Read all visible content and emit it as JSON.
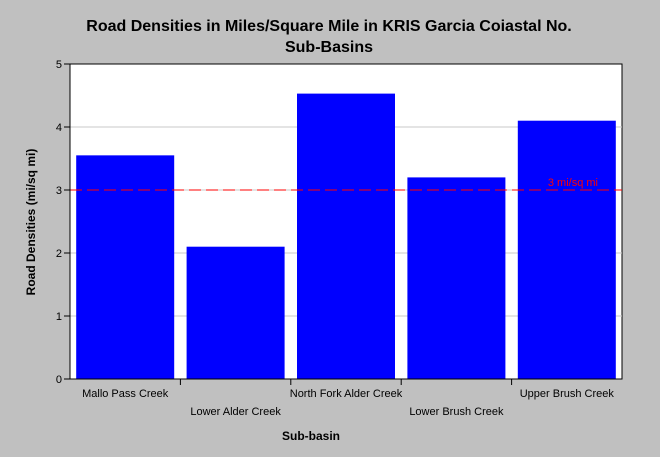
{
  "chart_data": {
    "type": "bar",
    "title_line1": "Road Densities in Miles/Square Mile in KRIS Garcia Coiastal No.",
    "title_line2": "Sub-Basins",
    "xlabel": "Sub-basin",
    "ylabel": "Road Densities (mi/sq mi)",
    "categories": [
      "Mallo Pass Creek",
      "Lower Alder Creek",
      "North Fork Alder Creek",
      "Lower Brush Creek",
      "Upper Brush Creek"
    ],
    "values": [
      3.55,
      2.1,
      4.53,
      3.2,
      4.1
    ],
    "ylim": [
      0,
      5
    ],
    "yticks": [
      "0",
      "1",
      "2",
      "3",
      "4",
      "5"
    ],
    "grid": true,
    "bar_color": "#0000ff",
    "reference_line": {
      "value": 3,
      "label": "3 mi/sq mi",
      "color": "#ff0000"
    }
  }
}
